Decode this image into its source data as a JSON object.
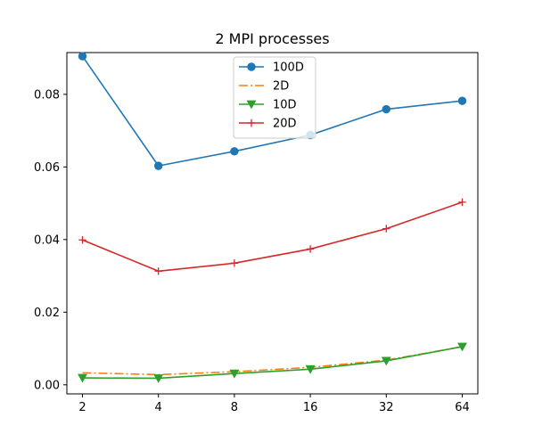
{
  "chart_data": {
    "type": "line",
    "title": "2 MPI processes",
    "xlabel": "",
    "ylabel": "",
    "x_scale": "log2",
    "categories": [
      "2",
      "4",
      "8",
      "16",
      "32",
      "64"
    ],
    "x": [
      2,
      4,
      8,
      16,
      32,
      64
    ],
    "ylim": [
      -0.0025,
      0.0915
    ],
    "yticks": [
      0.0,
      0.02,
      0.04,
      0.06,
      0.08
    ],
    "ytick_labels": [
      "0.00",
      "0.02",
      "0.04",
      "0.06",
      "0.08"
    ],
    "grid": false,
    "legend_position": "top-center",
    "series": [
      {
        "name": "100D",
        "color": "#1f77b4",
        "line_style": "solid",
        "marker": "circle",
        "values": [
          0.0905,
          0.0603,
          0.0643,
          0.0688,
          0.0759,
          0.0782
        ]
      },
      {
        "name": "2D",
        "color": "#ff7f0e",
        "line_style": "dashdot",
        "marker": "none",
        "values": [
          0.0033,
          0.0028,
          0.0036,
          0.0048,
          0.0068,
          0.0105
        ]
      },
      {
        "name": "10D",
        "color": "#2ca02c",
        "line_style": "solid",
        "marker": "triangle-down",
        "values": [
          0.0019,
          0.0018,
          0.0031,
          0.0043,
          0.0066,
          0.0105
        ]
      },
      {
        "name": "20D",
        "color": "#d62728",
        "line_style": "solid",
        "marker": "plus",
        "values": [
          0.0399,
          0.0313,
          0.0335,
          0.0374,
          0.043,
          0.0503
        ]
      }
    ]
  }
}
